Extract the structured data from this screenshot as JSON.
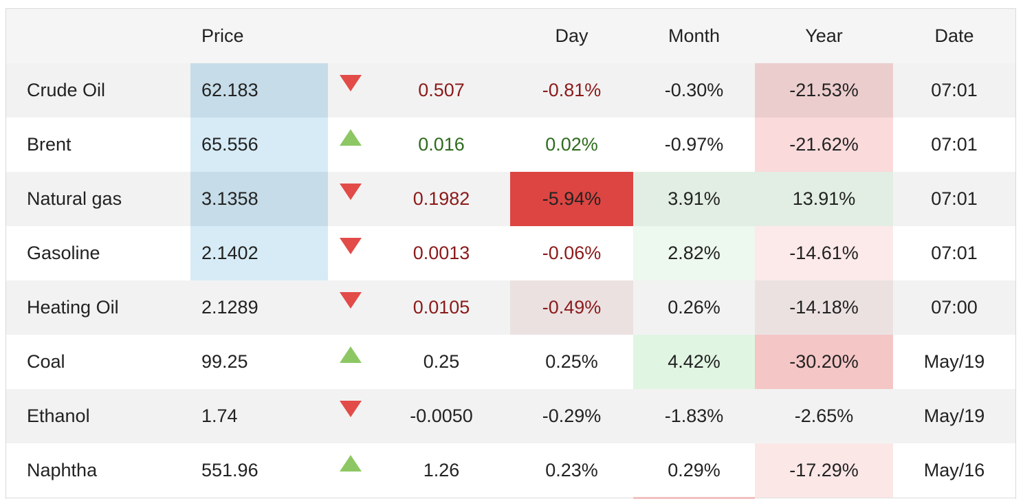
{
  "header": {
    "name": "",
    "price": "Price",
    "arrow": "",
    "change": "",
    "day": "Day",
    "month": "Month",
    "year": "Year",
    "date": "Date"
  },
  "colors": {
    "price_highlight_dark": "#c8dde9",
    "price_highlight_light": "#d6eaf6",
    "negative_text": "#8b1a1a",
    "positive_text": "#2e6b1e",
    "arrow_down": "#e24b48",
    "arrow_up": "#8dc764"
  },
  "rows": [
    {
      "name": "Crude Oil",
      "price": "62.183",
      "direction": "down",
      "change": "0.507",
      "day": "-0.81%",
      "month": "-0.30%",
      "year": "-21.53%",
      "date": "07:01",
      "price_bg": "#c6dce8",
      "day_bg": "",
      "month_bg": "",
      "year_bg": "#eccdcd"
    },
    {
      "name": "Brent",
      "price": "65.556",
      "direction": "up",
      "change": "0.016",
      "day": "0.02%",
      "month": "-0.97%",
      "year": "-21.62%",
      "date": "07:01",
      "price_bg": "#d6ebf6",
      "day_bg": "",
      "month_bg": "",
      "year_bg": "#fadadb"
    },
    {
      "name": "Natural gas",
      "price": "3.1358",
      "direction": "down",
      "change": "0.1982",
      "day": "-5.94%",
      "month": "3.91%",
      "year": "13.91%",
      "date": "07:01",
      "price_bg": "#c6dce8",
      "day_bg": "#dc4542",
      "month_bg": "#e2eee3",
      "year_bg": "#e2eee3"
    },
    {
      "name": "Gasoline",
      "price": "2.1402",
      "direction": "down",
      "change": "0.0013",
      "day": "-0.06%",
      "month": "2.82%",
      "year": "-14.61%",
      "date": "07:01",
      "price_bg": "#d6ebf6",
      "day_bg": "",
      "month_bg": "#edf8ee",
      "year_bg": "#fce9e9"
    },
    {
      "name": "Heating Oil",
      "price": "2.1289",
      "direction": "down",
      "change": "0.0105",
      "day": "-0.49%",
      "month": "0.26%",
      "year": "-14.18%",
      "date": "07:00",
      "price_bg": "",
      "day_bg": "#ebe1e1",
      "month_bg": "",
      "year_bg": "#ebe1e1"
    },
    {
      "name": "Coal",
      "price": "99.25",
      "direction": "up",
      "change": "0.25",
      "day": "0.25%",
      "month": "4.42%",
      "year": "-30.20%",
      "date": "May/19",
      "price_bg": "",
      "day_bg": "",
      "month_bg": "#e0f5e2",
      "year_bg": "#f5c6c6"
    },
    {
      "name": "Ethanol",
      "price": "1.74",
      "direction": "down",
      "change": "-0.0050",
      "day": "-0.29%",
      "month": "-1.83%",
      "year": "-2.65%",
      "date": "May/19",
      "price_bg": "",
      "day_bg": "",
      "month_bg": "",
      "year_bg": ""
    },
    {
      "name": "Naphtha",
      "price": "551.96",
      "direction": "up",
      "change": "1.26",
      "day": "0.23%",
      "month": "0.29%",
      "year": "-17.29%",
      "date": "May/16",
      "price_bg": "",
      "day_bg": "",
      "month_bg": "",
      "year_bg": "#fce7e7"
    }
  ]
}
